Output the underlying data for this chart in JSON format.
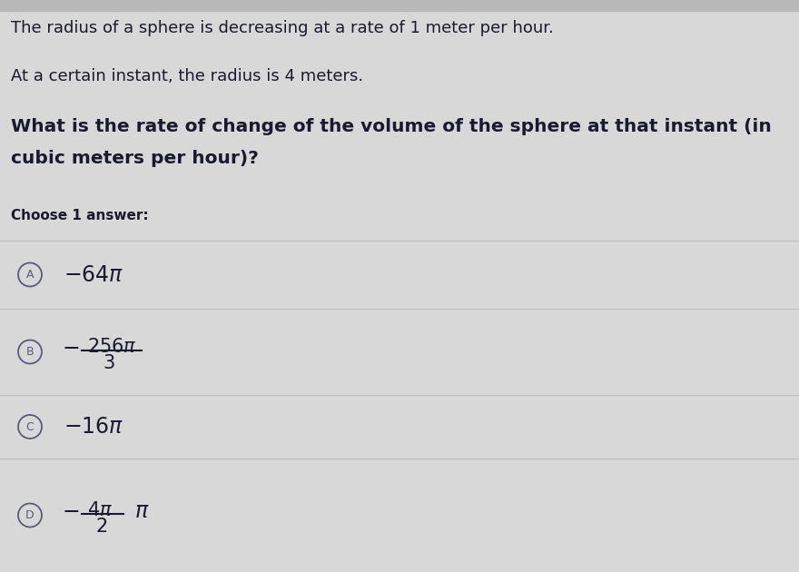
{
  "bg_color": "#d8d8d8",
  "line1": "The radius of a sphere is decreasing at a rate of 1 meter per hour.",
  "line2": "At a certain instant, the radius is 4 meters.",
  "question_line1": "What is the rate of change of the volume of the sphere at that instant (in",
  "question_line2": "cubic meters per hour)?",
  "choose_label": "Choose 1 answer:",
  "text_color": "#1a1a2e",
  "divider_color": "#c0c0c0",
  "circle_border_color": "#5a5a7a",
  "bg_top_color": "#c8c8c8",
  "option_bg_color": "#d0d0d0"
}
